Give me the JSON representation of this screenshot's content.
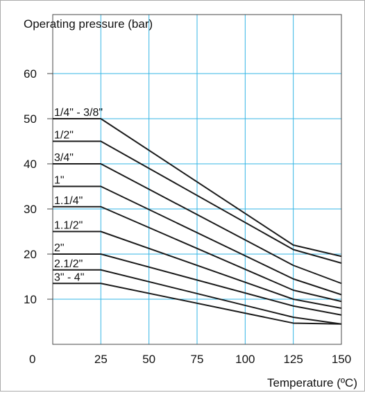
{
  "chart_data": {
    "type": "line",
    "ylabel": "Operating pressure (bar)",
    "xlabel": "Temperature (ºC)",
    "origin_label": "0",
    "xlim": [
      0,
      150
    ],
    "ylim": [
      0,
      70
    ],
    "x_ticks": [
      25,
      50,
      75,
      100,
      125,
      150
    ],
    "x_tick_labels": [
      "25",
      "50",
      "75",
      "100",
      "125",
      "150"
    ],
    "y_ticks": [
      10,
      20,
      30,
      40,
      50,
      60
    ],
    "y_tick_labels": [
      "10",
      "20",
      "30",
      "40",
      "50",
      "60"
    ],
    "grid": true,
    "grid_color": "#33b5e5",
    "line_color": "#1a1a1a",
    "series": [
      {
        "name": "1/4\" - 3/8\"",
        "x": [
          0,
          25,
          125,
          150
        ],
        "y": [
          50,
          50,
          22,
          19.5
        ]
      },
      {
        "name": "1/2\"",
        "x": [
          0,
          25,
          125,
          150
        ],
        "y": [
          45,
          45,
          21,
          18
        ]
      },
      {
        "name": "3/4\"",
        "x": [
          0,
          25,
          125,
          150
        ],
        "y": [
          40,
          40,
          17.5,
          13.5
        ]
      },
      {
        "name": "1\"",
        "x": [
          0,
          25,
          125,
          150
        ],
        "y": [
          35,
          35,
          14.5,
          11
        ]
      },
      {
        "name": "1.1/4\"",
        "x": [
          0,
          25,
          125,
          150
        ],
        "y": [
          30.5,
          30.5,
          12,
          9.5
        ]
      },
      {
        "name": "1.1/2\"",
        "x": [
          0,
          25,
          125,
          150
        ],
        "y": [
          25,
          25,
          10,
          8
        ]
      },
      {
        "name": "2\"",
        "x": [
          0,
          25,
          125,
          150
        ],
        "y": [
          20,
          20,
          8.5,
          6.5
        ]
      },
      {
        "name": "2.1/2\"",
        "x": [
          0,
          25,
          125,
          150
        ],
        "y": [
          16.5,
          16.5,
          6,
          4.5
        ]
      },
      {
        "name": "3\" - 4\"",
        "x": [
          0,
          25,
          125,
          150
        ],
        "y": [
          13.5,
          13.5,
          4.7,
          4.5
        ]
      }
    ]
  }
}
